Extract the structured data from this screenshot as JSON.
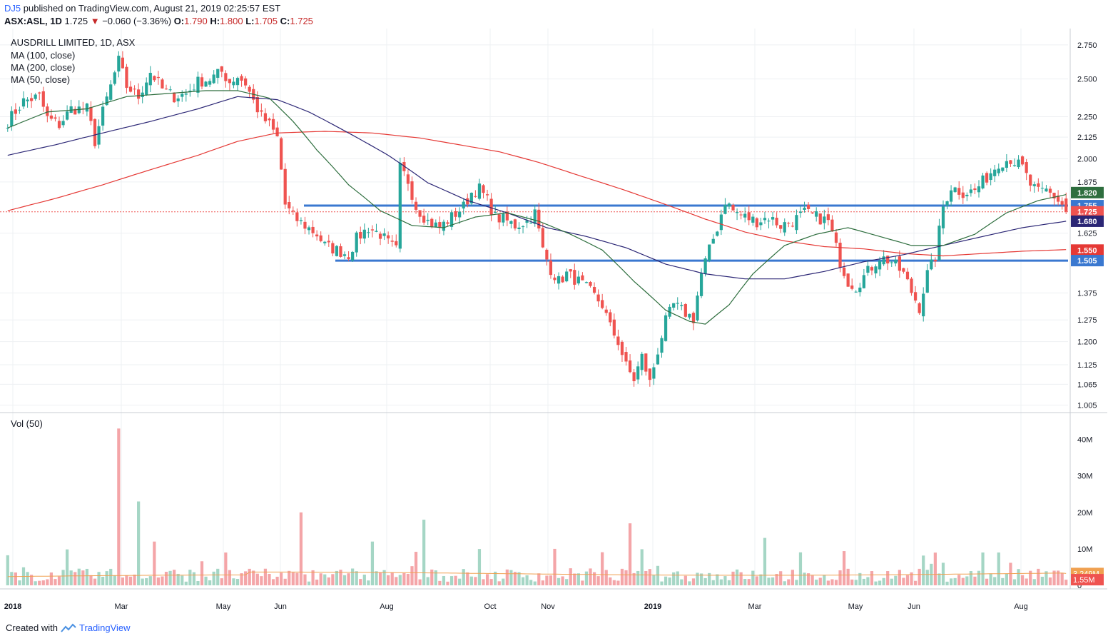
{
  "header": {
    "author": "DJ5",
    "published_text": "published on TradingView.com, August 21, 2019 02:25:57 EST"
  },
  "quote": {
    "symbol": "ASX:ASL, 1D",
    "last": "1.725",
    "arrow": "▼",
    "change": "−0.060 (−3.36%)",
    "o_label": "O:",
    "o": "1.790",
    "h_label": "H:",
    "h": "1.800",
    "l_label": "L:",
    "l": "1.705",
    "c_label": "C:",
    "c": "1.725"
  },
  "footer": {
    "created_with": "Created with",
    "brand": "TradingView"
  },
  "colors": {
    "up": "#26a69a",
    "down": "#ef5350",
    "vol_up": "#a5d6c5",
    "vol_down": "#f4a5a8",
    "ma100": "#2b2675",
    "ma200": "#e53935",
    "ma50": "#2e6e3e",
    "hline": "#3a78d0",
    "grid": "#eef0f3",
    "vol_ma": "#f0a050"
  },
  "chart_data": {
    "type": "candlestick",
    "title": "AUSDRILL LIMITED, 1D, ASX",
    "legend": [
      "MA (100, close)",
      "MA (200, close)",
      "MA (50, close)"
    ],
    "price_axis": {
      "scale": "log",
      "ticks": [
        "2.750",
        "2.500",
        "2.250",
        "2.125",
        "2.000",
        "1.875",
        "1.625",
        "1.375",
        "1.275",
        "1.200",
        "1.125",
        "1.065",
        "1.005"
      ],
      "range": [
        1.0,
        2.85
      ]
    },
    "time_axis": {
      "labels": [
        "2018",
        "Mar",
        "May",
        "Jun",
        "Aug",
        "Oct",
        "Nov",
        "2019",
        "Mar",
        "May",
        "Jun",
        "Aug"
      ],
      "bold": [
        "2018",
        "2019"
      ]
    },
    "price_labels": [
      {
        "value": "1.820",
        "color": "#2e6e3e"
      },
      {
        "value": "1.755",
        "color": "#3a78d0"
      },
      {
        "value": "1.725",
        "color": "#ef5350"
      },
      {
        "value": "1.680",
        "color": "#2b2675"
      },
      {
        "value": "1.550",
        "color": "#e53935"
      },
      {
        "value": "1.505",
        "color": "#3a78d0"
      }
    ],
    "horizontal_lines": [
      1.755,
      1.505
    ],
    "last_price": 1.725,
    "close_path": [
      [
        0,
        2.22
      ],
      [
        4,
        2.35
      ],
      [
        8,
        2.38
      ],
      [
        10,
        2.24
      ],
      [
        13,
        2.2
      ],
      [
        16,
        2.3
      ],
      [
        20,
        2.3
      ],
      [
        22,
        2.1
      ],
      [
        24,
        2.28
      ],
      [
        26,
        2.45
      ],
      [
        28,
        2.63
      ],
      [
        30,
        2.45
      ],
      [
        33,
        2.38
      ],
      [
        36,
        2.55
      ],
      [
        39,
        2.43
      ],
      [
        42,
        2.38
      ],
      [
        45,
        2.4
      ],
      [
        48,
        2.48
      ],
      [
        51,
        2.5
      ],
      [
        54,
        2.55
      ],
      [
        56,
        2.48
      ],
      [
        58,
        2.52
      ],
      [
        60,
        2.47
      ],
      [
        62,
        2.35
      ],
      [
        64,
        2.25
      ],
      [
        66,
        2.2
      ],
      [
        68,
        2.12
      ],
      [
        70,
        1.76
      ],
      [
        72,
        1.7
      ],
      [
        75,
        1.66
      ],
      [
        78,
        1.62
      ],
      [
        80,
        1.57
      ],
      [
        83,
        1.55
      ],
      [
        86,
        1.53
      ],
      [
        88,
        1.6
      ],
      [
        91,
        1.65
      ],
      [
        94,
        1.62
      ],
      [
        96,
        1.58
      ],
      [
        98,
        1.55
      ],
      [
        99,
        1.95
      ],
      [
        101,
        1.88
      ],
      [
        103,
        1.75
      ],
      [
        106,
        1.68
      ],
      [
        109,
        1.65
      ],
      [
        112,
        1.7
      ],
      [
        115,
        1.75
      ],
      [
        117,
        1.82
      ],
      [
        119,
        1.84
      ],
      [
        121,
        1.78
      ],
      [
        123,
        1.7
      ],
      [
        126,
        1.68
      ],
      [
        128,
        1.66
      ],
      [
        131,
        1.68
      ],
      [
        133,
        1.72
      ],
      [
        135,
        1.55
      ],
      [
        137,
        1.47
      ],
      [
        139,
        1.42
      ],
      [
        141,
        1.45
      ],
      [
        144,
        1.42
      ],
      [
        147,
        1.38
      ],
      [
        150,
        1.33
      ],
      [
        152,
        1.25
      ],
      [
        154,
        1.2
      ],
      [
        156,
        1.12
      ],
      [
        158,
        1.08
      ],
      [
        160,
        1.15
      ],
      [
        162,
        1.07
      ],
      [
        164,
        1.17
      ],
      [
        166,
        1.27
      ],
      [
        168,
        1.33
      ],
      [
        171,
        1.3
      ],
      [
        173,
        1.28
      ],
      [
        175,
        1.45
      ],
      [
        177,
        1.55
      ],
      [
        179,
        1.65
      ],
      [
        181,
        1.78
      ],
      [
        183,
        1.73
      ],
      [
        186,
        1.7
      ],
      [
        189,
        1.68
      ],
      [
        192,
        1.7
      ],
      [
        195,
        1.66
      ],
      [
        198,
        1.68
      ],
      [
        201,
        1.72
      ],
      [
        204,
        1.7
      ],
      [
        207,
        1.68
      ],
      [
        210,
        1.5
      ],
      [
        212,
        1.42
      ],
      [
        214,
        1.4
      ],
      [
        217,
        1.46
      ],
      [
        220,
        1.52
      ],
      [
        223,
        1.5
      ],
      [
        226,
        1.45
      ],
      [
        228,
        1.38
      ],
      [
        230,
        1.32
      ],
      [
        232,
        1.45
      ],
      [
        234,
        1.52
      ],
      [
        236,
        1.75
      ],
      [
        238,
        1.85
      ],
      [
        241,
        1.82
      ],
      [
        244,
        1.83
      ],
      [
        247,
        1.9
      ],
      [
        250,
        1.98
      ],
      [
        253,
        2.0
      ],
      [
        256,
        1.95
      ],
      [
        258,
        1.86
      ],
      [
        260,
        1.82
      ],
      [
        262,
        1.83
      ],
      [
        264,
        1.8
      ],
      [
        266,
        1.76
      ],
      [
        267,
        1.725
      ]
    ],
    "ma50_path": [
      [
        0,
        2.18
      ],
      [
        10,
        2.28
      ],
      [
        20,
        2.3
      ],
      [
        30,
        2.38
      ],
      [
        40,
        2.4
      ],
      [
        50,
        2.42
      ],
      [
        58,
        2.42
      ],
      [
        66,
        2.37
      ],
      [
        72,
        2.22
      ],
      [
        78,
        2.05
      ],
      [
        86,
        1.86
      ],
      [
        94,
        1.73
      ],
      [
        102,
        1.66
      ],
      [
        110,
        1.65
      ],
      [
        118,
        1.7
      ],
      [
        126,
        1.72
      ],
      [
        134,
        1.68
      ],
      [
        142,
        1.62
      ],
      [
        150,
        1.55
      ],
      [
        158,
        1.42
      ],
      [
        166,
        1.31
      ],
      [
        172,
        1.27
      ],
      [
        176,
        1.26
      ],
      [
        182,
        1.33
      ],
      [
        188,
        1.45
      ],
      [
        196,
        1.57
      ],
      [
        204,
        1.62
      ],
      [
        212,
        1.65
      ],
      [
        220,
        1.61
      ],
      [
        228,
        1.57
      ],
      [
        236,
        1.57
      ],
      [
        244,
        1.62
      ],
      [
        252,
        1.72
      ],
      [
        260,
        1.78
      ],
      [
        267,
        1.81
      ]
    ],
    "ma100_path": [
      [
        0,
        2.02
      ],
      [
        12,
        2.08
      ],
      [
        24,
        2.15
      ],
      [
        36,
        2.22
      ],
      [
        48,
        2.3
      ],
      [
        58,
        2.38
      ],
      [
        68,
        2.36
      ],
      [
        76,
        2.28
      ],
      [
        86,
        2.15
      ],
      [
        96,
        2.02
      ],
      [
        106,
        1.87
      ],
      [
        116,
        1.78
      ],
      [
        126,
        1.72
      ],
      [
        136,
        1.65
      ],
      [
        146,
        1.61
      ],
      [
        156,
        1.56
      ],
      [
        166,
        1.49
      ],
      [
        176,
        1.45
      ],
      [
        186,
        1.43
      ],
      [
        196,
        1.43
      ],
      [
        206,
        1.46
      ],
      [
        216,
        1.5
      ],
      [
        226,
        1.53
      ],
      [
        236,
        1.57
      ],
      [
        246,
        1.61
      ],
      [
        256,
        1.65
      ],
      [
        267,
        1.68
      ]
    ],
    "ma200_path": [
      [
        0,
        1.73
      ],
      [
        12,
        1.79
      ],
      [
        24,
        1.86
      ],
      [
        36,
        1.94
      ],
      [
        48,
        2.02
      ],
      [
        58,
        2.1
      ],
      [
        68,
        2.15
      ],
      [
        80,
        2.16
      ],
      [
        92,
        2.15
      ],
      [
        104,
        2.12
      ],
      [
        114,
        2.08
      ],
      [
        124,
        2.04
      ],
      [
        134,
        1.98
      ],
      [
        144,
        1.91
      ],
      [
        156,
        1.83
      ],
      [
        166,
        1.76
      ],
      [
        176,
        1.69
      ],
      [
        186,
        1.63
      ],
      [
        196,
        1.59
      ],
      [
        206,
        1.565
      ],
      [
        216,
        1.555
      ],
      [
        226,
        1.535
      ],
      [
        236,
        1.525
      ],
      [
        246,
        1.535
      ],
      [
        256,
        1.545
      ],
      [
        267,
        1.552
      ]
    ],
    "volume": {
      "legend": "Vol (50)",
      "ticks": [
        "40M",
        "30M",
        "20M",
        "10M",
        "0"
      ],
      "labels": [
        {
          "value": "3.249M",
          "color": "#f0a050"
        },
        {
          "value": "1.55M",
          "color": "#ef5350"
        }
      ],
      "ma": 3.249,
      "last": 1.55,
      "spikes": [
        [
          28,
          43,
          "down"
        ],
        [
          33,
          23,
          "up"
        ],
        [
          37,
          12,
          "down"
        ],
        [
          74,
          20,
          "down"
        ],
        [
          105,
          18,
          "up"
        ],
        [
          157,
          17,
          "down"
        ],
        [
          92,
          12,
          "up"
        ],
        [
          138,
          10,
          "down"
        ],
        [
          191,
          13,
          "up"
        ],
        [
          246,
          9,
          "up"
        ],
        [
          250,
          9,
          "up"
        ]
      ]
    }
  }
}
